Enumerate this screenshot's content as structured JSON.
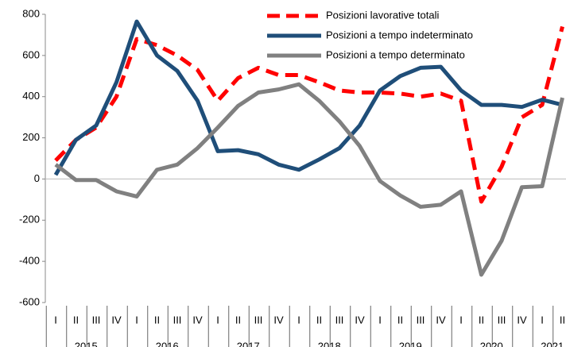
{
  "chart_data": {
    "type": "line",
    "categories": [
      "I",
      "II",
      "III",
      "IV",
      "I",
      "II",
      "III",
      "IV",
      "I",
      "II",
      "III",
      "IV",
      "I",
      "II",
      "III",
      "IV",
      "I",
      "II",
      "III",
      "IV",
      "I",
      "II",
      "III",
      "IV",
      "I",
      "II"
    ],
    "groups": [
      "2015",
      "2016",
      "2017",
      "2018",
      "2019",
      "2020",
      "2021"
    ],
    "series": [
      {
        "name": "Posizioni lavorative totali",
        "color": "#ff0000",
        "dashed": true,
        "values": [
          90,
          190,
          250,
          400,
          680,
          650,
          600,
          530,
          380,
          490,
          540,
          505,
          505,
          470,
          430,
          420,
          420,
          415,
          400,
          415,
          380,
          -110,
          60,
          300,
          360,
          740
        ]
      },
      {
        "name": "Posizioni a tempo indeterminato",
        "color": "#1f4e79",
        "dashed": false,
        "values": [
          20,
          190,
          260,
          470,
          765,
          600,
          525,
          380,
          135,
          140,
          120,
          70,
          45,
          95,
          150,
          260,
          430,
          500,
          540,
          545,
          430,
          360,
          360,
          350,
          385,
          360
        ]
      },
      {
        "name": "Posizioni a  tempo determinato",
        "color": "#808080",
        "dashed": false,
        "values": [
          70,
          -5,
          -5,
          -60,
          -85,
          45,
          70,
          150,
          250,
          355,
          420,
          435,
          460,
          380,
          280,
          160,
          -10,
          -80,
          -135,
          -125,
          -60,
          -465,
          -300,
          -40,
          -35,
          395
        ]
      }
    ],
    "ylim": [
      -600,
      800
    ],
    "yticks": [
      -600,
      -400,
      -200,
      0,
      200,
      400,
      600,
      800
    ],
    "legend": "top"
  }
}
